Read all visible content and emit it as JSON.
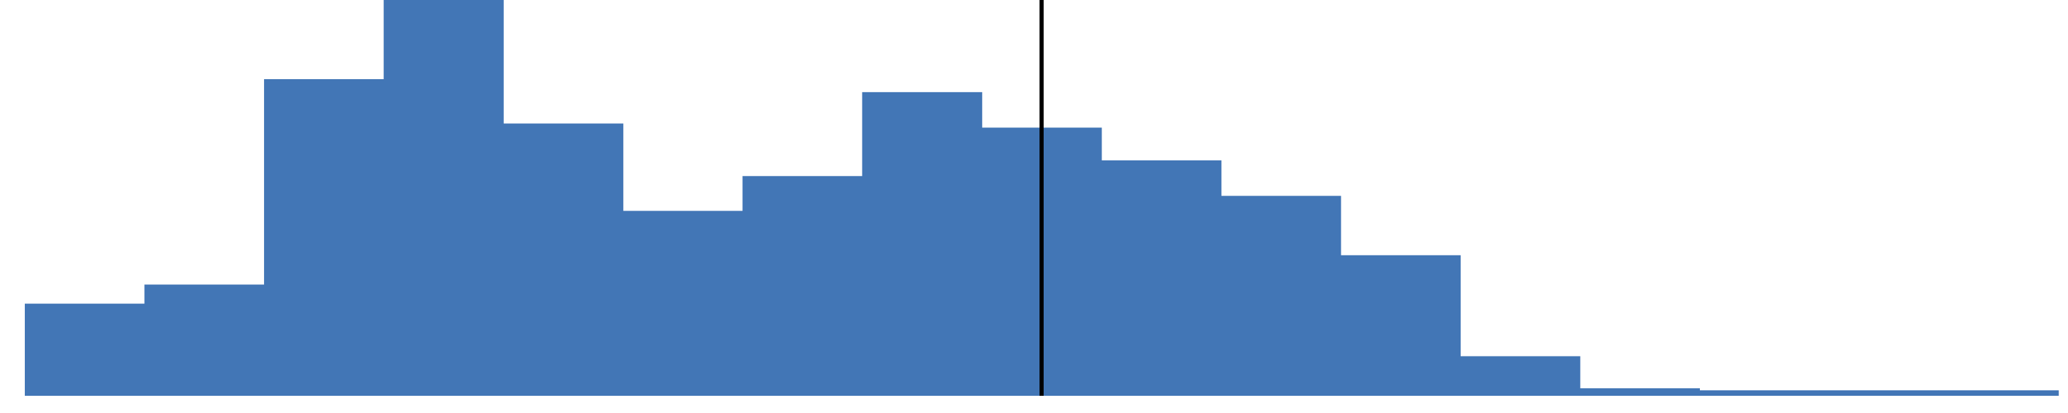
{
  "chart_data": {
    "type": "bar",
    "values": [
      135,
      163,
      464,
      580,
      399,
      271,
      322,
      445,
      393,
      345,
      293,
      206,
      58,
      11,
      8,
      8,
      8
    ],
    "ylim": [
      0,
      580
    ],
    "bins": 17,
    "reference_line_bin_position": 8.5,
    "colors": {
      "bar": "#4276b6",
      "reference_line": "#000000",
      "background": "#ffffff"
    },
    "grid": false,
    "legend": "none"
  }
}
